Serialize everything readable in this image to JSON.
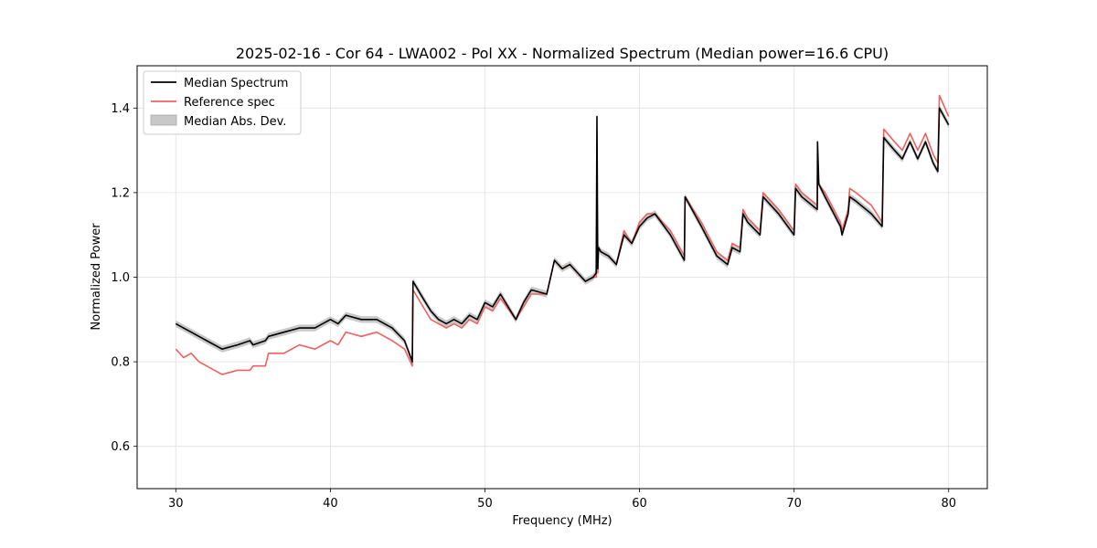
{
  "chart_data": {
    "type": "line",
    "title": "2025-02-16 - Cor 64 - LWA002 - Pol XX - Normalized Spectrum (Median power=16.6 CPU)",
    "xlabel": "Frequency (MHz)",
    "ylabel": "Normalized Power",
    "xlim": [
      27.5,
      82.5
    ],
    "ylim": [
      0.5,
      1.5
    ],
    "xticks": [
      30,
      40,
      50,
      60,
      70,
      80
    ],
    "yticks": [
      0.6,
      0.8,
      1.0,
      1.2,
      1.4
    ],
    "xtick_labels": [
      "30",
      "40",
      "50",
      "60",
      "70",
      "80"
    ],
    "ytick_labels": [
      "0.6",
      "0.8",
      "1.0",
      "1.2",
      "1.4"
    ],
    "grid": true,
    "legend_position": "top-left",
    "colors": {
      "median": "#000000",
      "reference": "#f06060",
      "mad": "#c8c8c8",
      "grid": "#e0e0e0"
    },
    "series": [
      {
        "name": "Median Spectrum",
        "x": [
          30.0,
          30.5,
          31.0,
          31.5,
          32.0,
          32.5,
          33.0,
          34.0,
          34.8,
          35.0,
          35.8,
          36.0,
          37.0,
          38.0,
          39.0,
          40.0,
          40.5,
          41.0,
          42.0,
          43.0,
          44.0,
          44.8,
          45.3,
          45.35,
          46.0,
          46.5,
          47.0,
          47.5,
          48.0,
          48.5,
          49.0,
          49.5,
          50.0,
          50.5,
          51.0,
          52.0,
          52.5,
          53.0,
          54.0,
          54.5,
          55.0,
          55.5,
          56.0,
          56.5,
          57.0,
          57.2,
          57.25,
          57.3,
          57.35,
          57.5,
          58.0,
          58.5,
          59.0,
          59.5,
          60.0,
          60.5,
          61.0,
          62.0,
          62.9,
          62.95,
          64.0,
          65.0,
          65.7,
          66.0,
          66.5,
          66.7,
          67.0,
          67.8,
          68.0,
          69.0,
          70.0,
          70.1,
          70.5,
          71.5,
          71.52,
          71.6,
          72.0,
          73.0,
          73.1,
          73.5,
          73.6,
          74.0,
          75.0,
          75.7,
          75.8,
          76.5,
          77.0,
          77.5,
          78.0,
          78.5,
          79.0,
          79.3,
          79.4,
          80.0
        ],
        "values": [
          0.89,
          0.88,
          0.87,
          0.86,
          0.85,
          0.84,
          0.83,
          0.84,
          0.85,
          0.84,
          0.85,
          0.86,
          0.87,
          0.88,
          0.88,
          0.9,
          0.89,
          0.91,
          0.9,
          0.9,
          0.88,
          0.85,
          0.8,
          0.99,
          0.95,
          0.92,
          0.9,
          0.89,
          0.9,
          0.89,
          0.91,
          0.9,
          0.94,
          0.93,
          0.96,
          0.9,
          0.94,
          0.97,
          0.96,
          1.04,
          1.02,
          1.03,
          1.01,
          0.99,
          1.0,
          1.01,
          1.38,
          1.02,
          1.07,
          1.06,
          1.05,
          1.03,
          1.1,
          1.08,
          1.12,
          1.14,
          1.15,
          1.1,
          1.04,
          1.19,
          1.12,
          1.05,
          1.03,
          1.07,
          1.06,
          1.15,
          1.13,
          1.1,
          1.19,
          1.15,
          1.1,
          1.21,
          1.19,
          1.16,
          1.32,
          1.22,
          1.19,
          1.12,
          1.1,
          1.15,
          1.19,
          1.18,
          1.15,
          1.12,
          1.33,
          1.3,
          1.28,
          1.32,
          1.28,
          1.32,
          1.27,
          1.25,
          1.4,
          1.36
        ]
      },
      {
        "name": "Reference spec",
        "x": [
          30.0,
          30.5,
          31.0,
          31.5,
          32.0,
          32.5,
          33.0,
          34.0,
          34.8,
          35.0,
          35.8,
          36.0,
          37.0,
          38.0,
          39.0,
          40.0,
          40.5,
          41.0,
          42.0,
          43.0,
          44.0,
          44.8,
          45.3,
          45.35,
          46.0,
          46.5,
          47.0,
          47.5,
          48.0,
          48.5,
          49.0,
          49.5,
          50.0,
          50.5,
          51.0,
          52.0,
          52.5,
          53.0,
          54.0,
          54.5,
          55.0,
          55.5,
          56.0,
          56.5,
          57.0,
          57.2,
          57.25,
          57.3,
          57.35,
          57.5,
          58.0,
          58.5,
          59.0,
          59.5,
          60.0,
          60.5,
          61.0,
          62.0,
          62.9,
          62.95,
          64.0,
          65.0,
          65.7,
          66.0,
          66.5,
          66.7,
          67.0,
          67.8,
          68.0,
          69.0,
          70.0,
          70.1,
          70.5,
          71.5,
          71.52,
          71.6,
          72.0,
          73.0,
          73.1,
          73.5,
          73.6,
          74.0,
          75.0,
          75.7,
          75.8,
          76.5,
          77.0,
          77.5,
          78.0,
          78.5,
          79.0,
          79.3,
          79.4,
          80.0
        ],
        "values": [
          0.83,
          0.81,
          0.82,
          0.8,
          0.79,
          0.78,
          0.77,
          0.78,
          0.78,
          0.79,
          0.79,
          0.82,
          0.82,
          0.84,
          0.83,
          0.85,
          0.84,
          0.87,
          0.86,
          0.87,
          0.85,
          0.83,
          0.79,
          0.97,
          0.93,
          0.9,
          0.89,
          0.88,
          0.89,
          0.88,
          0.9,
          0.89,
          0.93,
          0.92,
          0.95,
          0.9,
          0.93,
          0.96,
          0.96,
          1.04,
          1.02,
          1.03,
          1.01,
          0.99,
          1.0,
          1.0,
          1.19,
          1.01,
          1.07,
          1.06,
          1.05,
          1.03,
          1.11,
          1.08,
          1.13,
          1.15,
          1.15,
          1.11,
          1.05,
          1.19,
          1.13,
          1.06,
          1.04,
          1.08,
          1.07,
          1.16,
          1.14,
          1.11,
          1.2,
          1.16,
          1.11,
          1.22,
          1.2,
          1.17,
          1.25,
          1.22,
          1.2,
          1.13,
          1.11,
          1.16,
          1.21,
          1.2,
          1.17,
          1.13,
          1.35,
          1.32,
          1.3,
          1.34,
          1.3,
          1.34,
          1.29,
          1.27,
          1.43,
          1.38
        ]
      }
    ],
    "mad_band": {
      "name": "Median Abs. Dev.",
      "half_width": 0.008
    }
  }
}
